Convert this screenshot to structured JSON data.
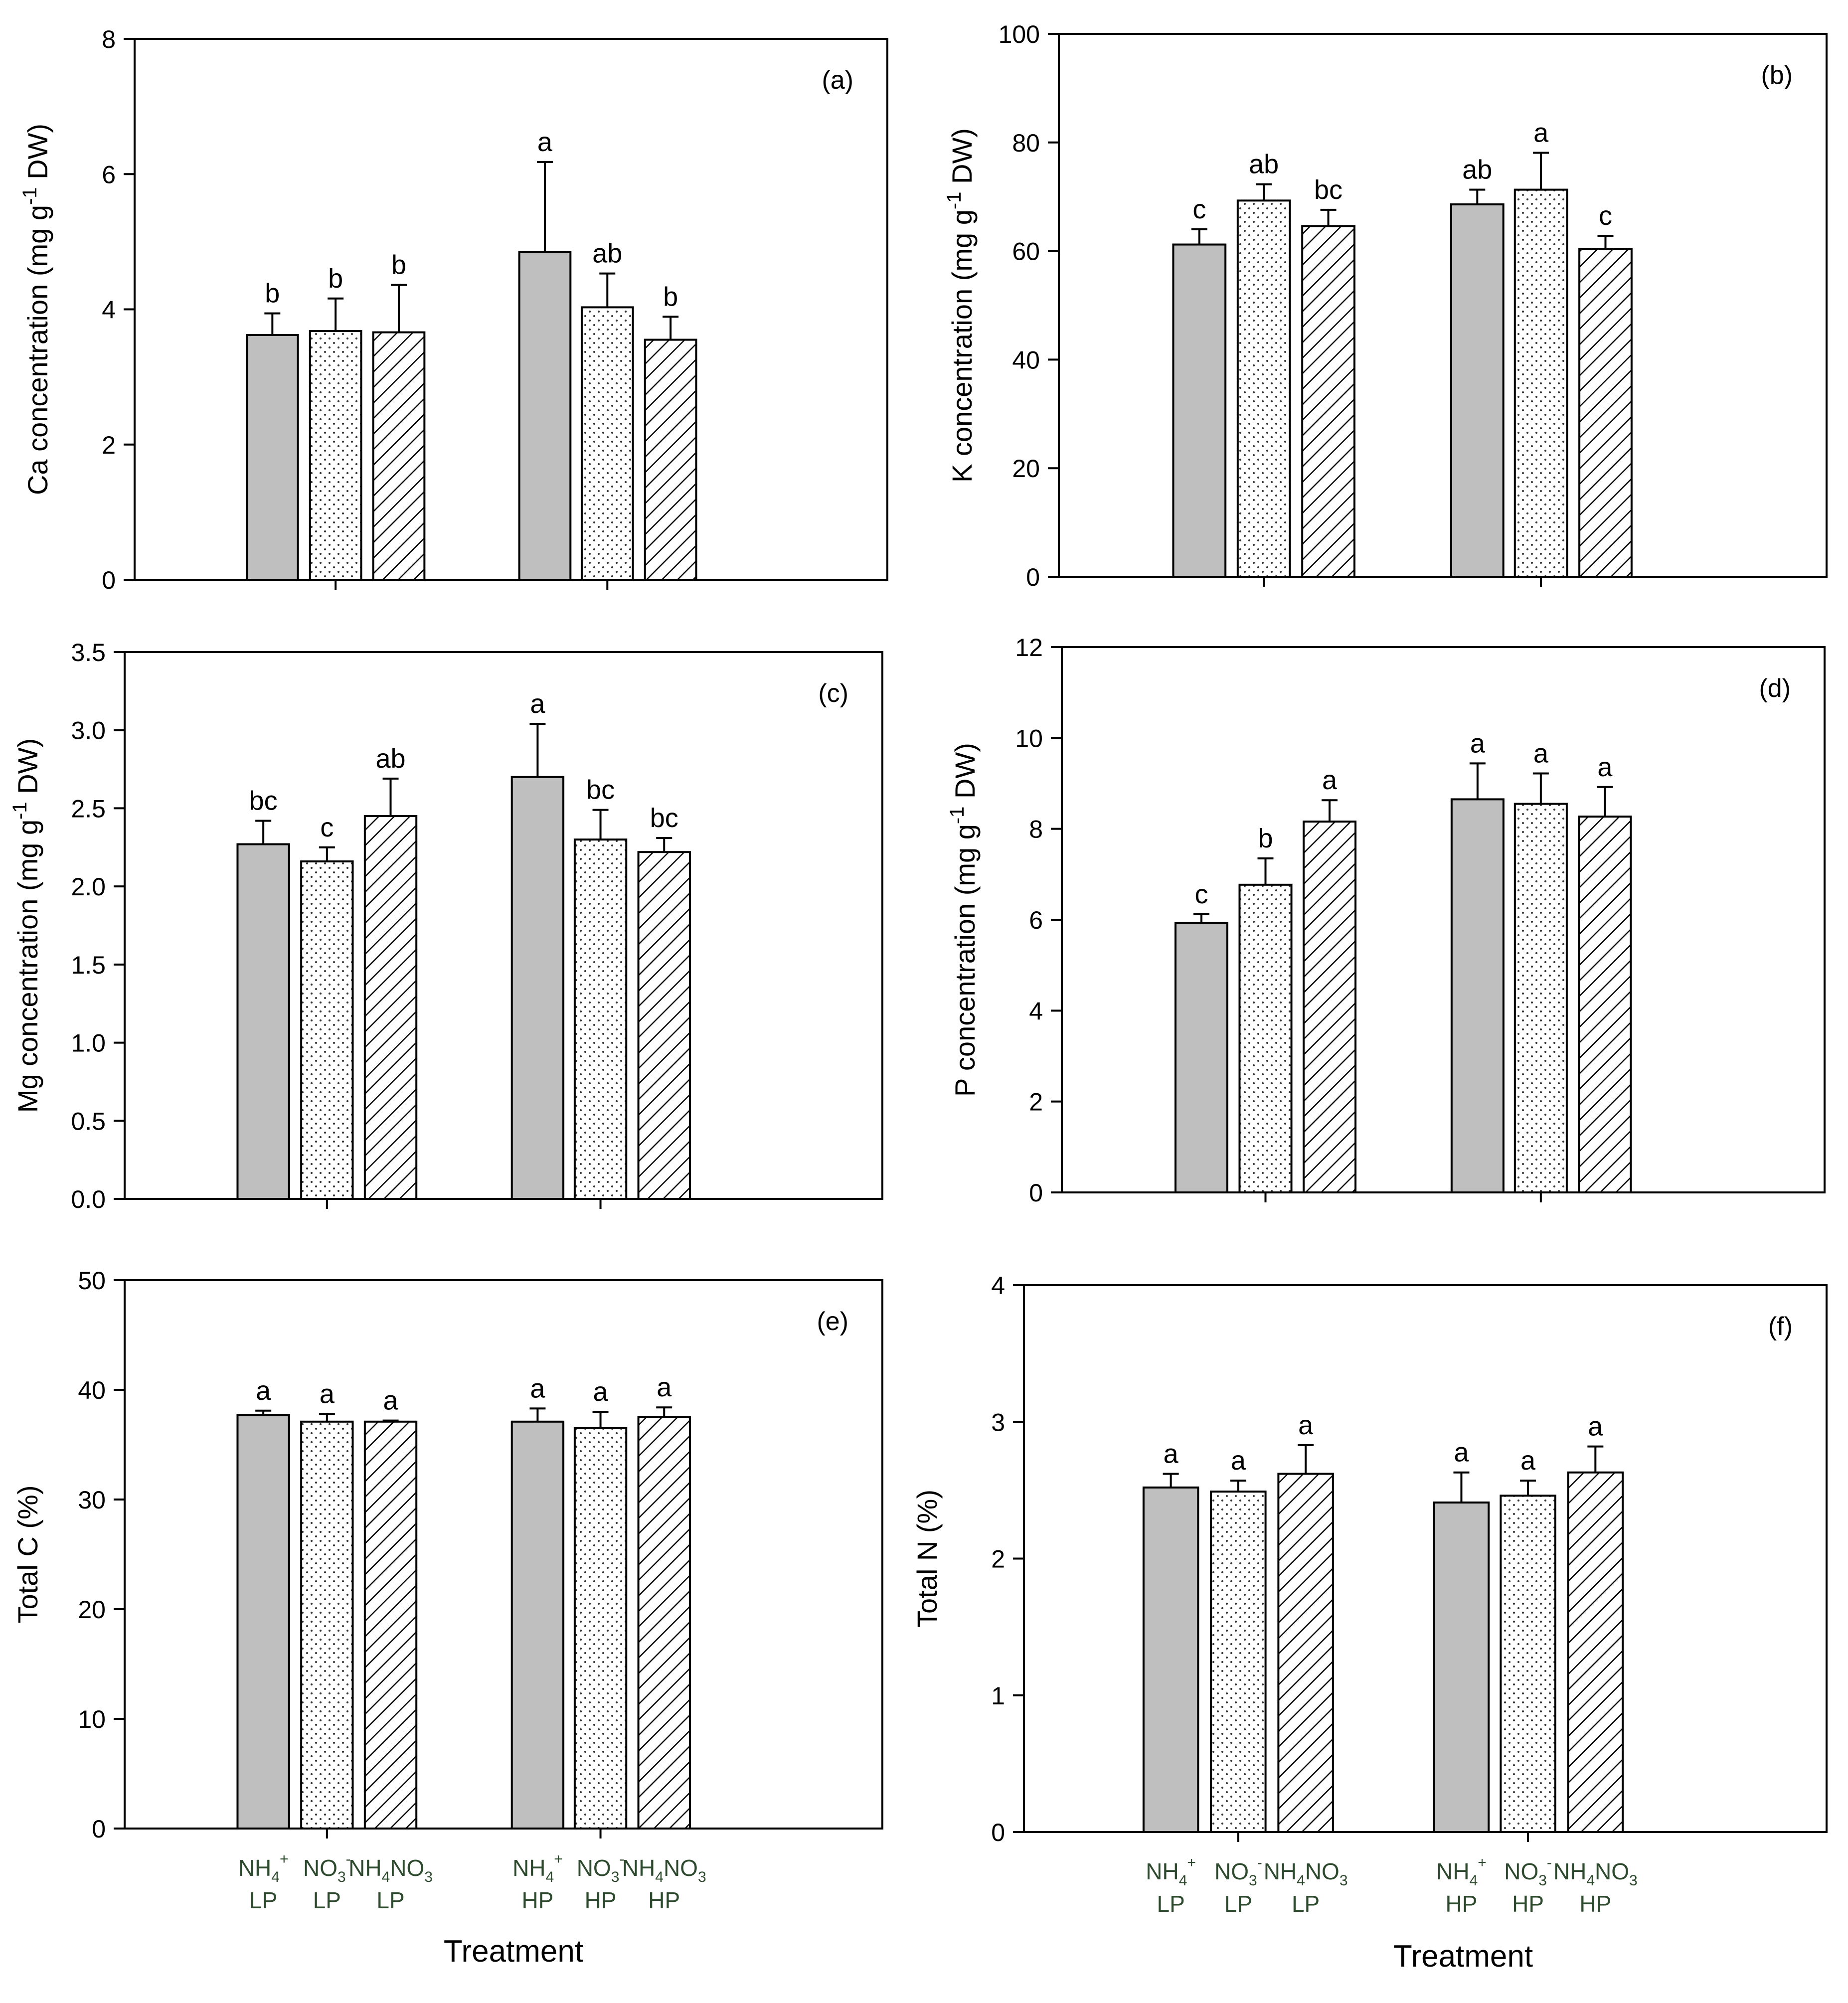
{
  "figure": {
    "x_axis_title": "Treatment",
    "category_labels": [
      {
        "line1": "NH",
        "sub": "4",
        "sup": "+",
        "tail": "",
        "line2": "LP"
      },
      {
        "line1": "NO",
        "sub": "3",
        "sup": "-",
        "tail": "",
        "line2": "LP"
      },
      {
        "line1": "NH",
        "sub": "4",
        "sup": "",
        "tail": "NO",
        "sub2": "3",
        "line2": "LP"
      },
      {
        "line1": "NH",
        "sub": "4",
        "sup": "+",
        "tail": "",
        "line2": "HP"
      },
      {
        "line1": "NO",
        "sub": "3",
        "sup": "-",
        "tail": "",
        "line2": "HP"
      },
      {
        "line1": "NH",
        "sub": "4",
        "sup": "",
        "tail": "NO",
        "sub2": "3",
        "line2": "HP"
      }
    ],
    "category_ids": [
      "NH4+ LP",
      "NO3- LP",
      "NH4NO3 LP",
      "NH4+ HP",
      "NO3- HP",
      "NH4NO3 HP"
    ],
    "series_styles": [
      {
        "fill": "#bfbfbf",
        "pattern": "solid"
      },
      {
        "fill": "#ffffff",
        "pattern": "dots"
      },
      {
        "fill": "#ffffff",
        "pattern": "diagonal-hatch"
      }
    ]
  },
  "chart_data": [
    {
      "type": "bar",
      "panel": "(a)",
      "ylabel": "Ca concentration (mg g-1 DW)",
      "ylabel_parts": {
        "pre": "Ca concentration (mg g",
        "sup": "-1",
        "post": " DW)"
      },
      "ylim": [
        0,
        8
      ],
      "yticks": [
        "0",
        "2",
        "4",
        "6",
        "8"
      ],
      "ytick_values": [
        0,
        2,
        4,
        6,
        8
      ],
      "values": [
        3.62,
        3.68,
        3.66,
        4.85,
        4.03,
        3.55
      ],
      "errors": [
        0.32,
        0.48,
        0.7,
        1.33,
        0.5,
        0.34
      ],
      "letters": [
        "b",
        "b",
        "b",
        "a",
        "ab",
        "b"
      ]
    },
    {
      "type": "bar",
      "panel": "(b)",
      "ylabel": "K concentration (mg g-1 DW)",
      "ylabel_parts": {
        "pre": "K concentration (mg g",
        "sup": "-1",
        "post": " DW)"
      },
      "ylim": [
        0,
        100
      ],
      "yticks": [
        "0",
        "20",
        "40",
        "60",
        "80",
        "100"
      ],
      "ytick_values": [
        0,
        20,
        40,
        60,
        80,
        100
      ],
      "values": [
        61.2,
        69.3,
        64.6,
        68.6,
        71.3,
        60.4
      ],
      "errors": [
        2.8,
        3.0,
        3.0,
        2.7,
        6.8,
        2.4
      ],
      "letters": [
        "c",
        "ab",
        "bc",
        "ab",
        "a",
        "c"
      ]
    },
    {
      "type": "bar",
      "panel": "(c)",
      "ylabel": "Mg concentration (mg g-1 DW)",
      "ylabel_parts": {
        "pre": "Mg concentration (mg g",
        "sup": "-1",
        "post": " DW)"
      },
      "ylim": [
        0,
        3.5
      ],
      "yticks": [
        "0.0",
        "0.5",
        "1.0",
        "1.5",
        "2.0",
        "2.5",
        "3.0",
        "3.5"
      ],
      "ytick_values": [
        0,
        0.5,
        1.0,
        1.5,
        2.0,
        2.5,
        3.0,
        3.5
      ],
      "values": [
        2.27,
        2.16,
        2.45,
        2.7,
        2.3,
        2.22
      ],
      "errors": [
        0.15,
        0.09,
        0.24,
        0.34,
        0.19,
        0.09
      ],
      "letters": [
        "bc",
        "c",
        "ab",
        "a",
        "bc",
        "bc"
      ]
    },
    {
      "type": "bar",
      "panel": "(d)",
      "ylabel": "P concentration (mg g-1 DW)",
      "ylabel_parts": {
        "pre": "P concentration (mg g",
        "sup": "-1",
        "post": " DW)"
      },
      "ylim": [
        0,
        12
      ],
      "yticks": [
        "0",
        "2",
        "4",
        "6",
        "8",
        "10",
        "12"
      ],
      "ytick_values": [
        0,
        2,
        4,
        6,
        8,
        10,
        12
      ],
      "values": [
        5.93,
        6.77,
        8.16,
        8.65,
        8.55,
        8.27
      ],
      "errors": [
        0.19,
        0.58,
        0.47,
        0.79,
        0.67,
        0.65
      ],
      "letters": [
        "c",
        "b",
        "a",
        "a",
        "a",
        "a"
      ]
    },
    {
      "type": "bar",
      "panel": "(e)",
      "ylabel": "Total C (%)",
      "ylim": [
        0,
        50
      ],
      "yticks": [
        "0",
        "10",
        "20",
        "30",
        "40",
        "50"
      ],
      "ytick_values": [
        0,
        10,
        20,
        30,
        40,
        50
      ],
      "values": [
        37.7,
        37.1,
        37.1,
        37.1,
        36.5,
        37.5
      ],
      "errors": [
        0.4,
        0.7,
        0.1,
        1.2,
        1.5,
        0.9
      ],
      "letters": [
        "a",
        "a",
        "a",
        "a",
        "a",
        "a"
      ]
    },
    {
      "type": "bar",
      "panel": "(f)",
      "ylabel": "Total N (%)",
      "ylim": [
        0,
        4
      ],
      "yticks": [
        "0",
        "1",
        "2",
        "3",
        "4"
      ],
      "ytick_values": [
        0,
        1,
        2,
        3,
        4
      ],
      "values": [
        2.52,
        2.49,
        2.62,
        2.41,
        2.46,
        2.63
      ],
      "errors": [
        0.1,
        0.08,
        0.21,
        0.22,
        0.11,
        0.19
      ],
      "letters": [
        "a",
        "a",
        "a",
        "a",
        "a",
        "a"
      ]
    }
  ]
}
